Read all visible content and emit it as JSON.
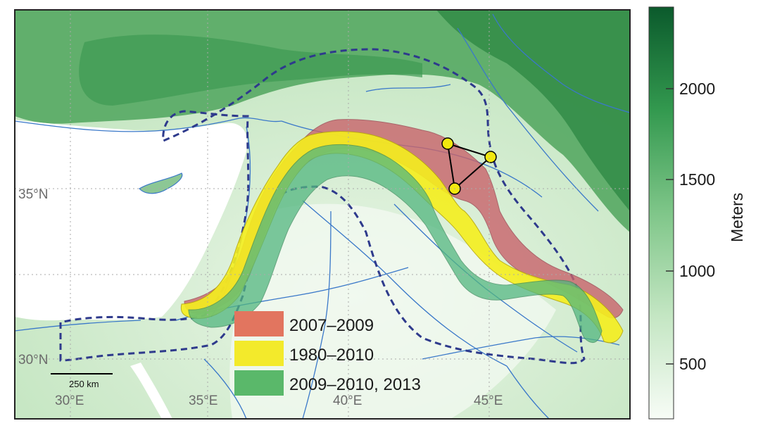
{
  "map": {
    "lat_labels": [
      "35°N",
      "30°N"
    ],
    "lon_labels": [
      "30°E",
      "35°E",
      "40°E",
      "45°E"
    ],
    "scale_bar": "250 km"
  },
  "legend": [
    {
      "label": "2007–2009",
      "color": "#e2755f"
    },
    {
      "label": "1980–2010",
      "color": "#f3ea2b"
    },
    {
      "label": "2009–2010, 2013",
      "color": "#5ab86a"
    }
  ],
  "colorbar": {
    "title": "Meters",
    "ticks": [
      "2000",
      "1500",
      "1000",
      "500"
    ],
    "colors": {
      "low": "#f4fbf3",
      "high": "#0b5a2c"
    }
  },
  "colors": {
    "band_red": "#c9636b",
    "band_yellow": "#f5ef1e",
    "band_green": "#52b67f",
    "border_dashed": "#2e3a8c",
    "rivers": "#3a78c9",
    "sites": "#f2e80f"
  }
}
